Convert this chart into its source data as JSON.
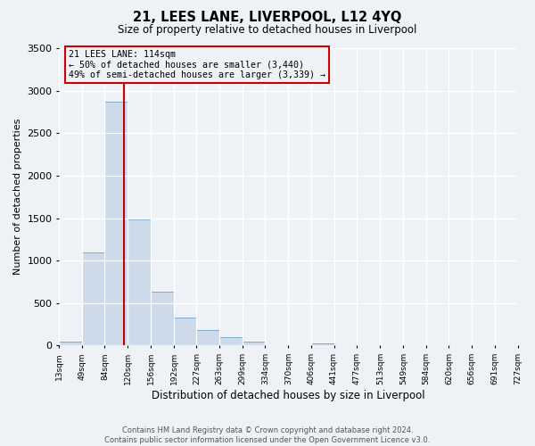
{
  "title": "21, LEES LANE, LIVERPOOL, L12 4YQ",
  "subtitle": "Size of property relative to detached houses in Liverpool",
  "xlabel": "Distribution of detached houses by size in Liverpool",
  "ylabel": "Number of detached properties",
  "bar_color": "#ccdaea",
  "bar_edge_color": "#7aaac8",
  "red_line_x": 114,
  "ylim": [
    0,
    3500
  ],
  "bin_edges": [
    13,
    49,
    84,
    120,
    156,
    192,
    227,
    263,
    299,
    334,
    370,
    406,
    441,
    477,
    513,
    549,
    584,
    620,
    656,
    691,
    727
  ],
  "bin_values": [
    50,
    1100,
    2870,
    1480,
    630,
    325,
    185,
    100,
    50,
    0,
    0,
    30,
    0,
    0,
    0,
    0,
    0,
    0,
    0,
    0
  ],
  "tick_labels": [
    "13sqm",
    "49sqm",
    "84sqm",
    "120sqm",
    "156sqm",
    "192sqm",
    "227sqm",
    "263sqm",
    "299sqm",
    "334sqm",
    "370sqm",
    "406sqm",
    "441sqm",
    "477sqm",
    "513sqm",
    "549sqm",
    "584sqm",
    "620sqm",
    "656sqm",
    "691sqm",
    "727sqm"
  ],
  "annotation_title": "21 LEES LANE: 114sqm",
  "annotation_line1": "← 50% of detached houses are smaller (3,440)",
  "annotation_line2": "49% of semi-detached houses are larger (3,339) →",
  "footer_line1": "Contains HM Land Registry data © Crown copyright and database right 2024.",
  "footer_line2": "Contains public sector information licensed under the Open Government Licence v3.0.",
  "background_color": "#eef2f7",
  "plot_bg_color": "#eef2f7",
  "grid_color": "#ffffff",
  "box_color": "#cc0000"
}
